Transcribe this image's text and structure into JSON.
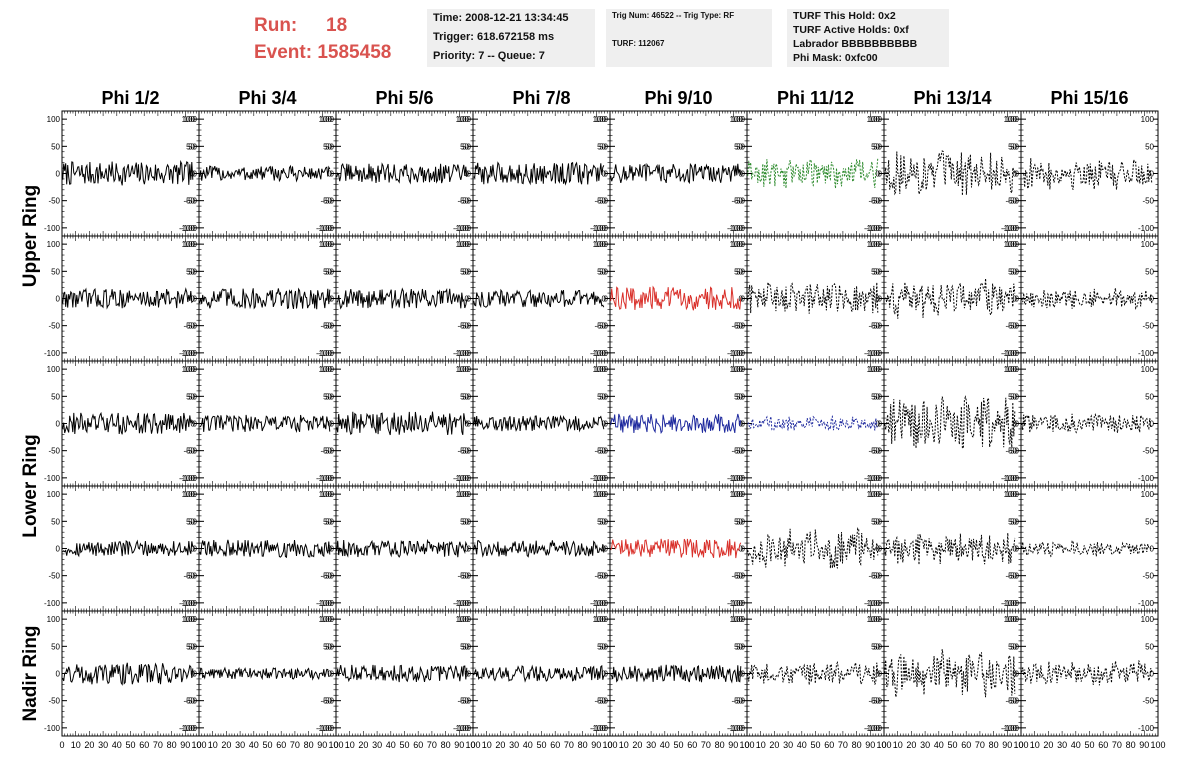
{
  "header": {
    "run_label": "Run:",
    "run_value": "18",
    "event_label": "Event:",
    "event_value": "1585458",
    "time_line": "Time: 2008-12-21 13:34:45",
    "trigger_line": "Trigger: 618.672158 ms",
    "priority_line": "Priority: 7 -- Queue: 7",
    "trig_num_line": "Trig Num: 46522 -- Trig Type: RF",
    "turf_line": "TURF: 112067",
    "turf_hold_line": "TURF This Hold: 0x2",
    "turf_active_line": "TURF Active Holds: 0xf",
    "labrador_line": "Labrador BBBBBBBBBB",
    "phi_mask_line": "Phi Mask: 0xfc00"
  },
  "chart_data": {
    "type": "line",
    "columns": [
      "Phi 1/2",
      "Phi 3/4",
      "Phi 5/6",
      "Phi 7/8",
      "Phi 9/10",
      "Phi 11/12",
      "Phi 13/14",
      "Phi 15/16"
    ],
    "rows": [
      "Upper Ring",
      "Lower Ring",
      "Nadir Ring"
    ],
    "xlim": [
      0,
      100
    ],
    "ylim": [
      -115,
      115
    ],
    "yticks": [
      -100,
      -50,
      0,
      50,
      100
    ],
    "xticks": [
      0,
      10,
      20,
      30,
      40,
      50,
      60,
      70,
      80,
      90,
      100
    ],
    "colors": {
      "black": "#000000",
      "green": "#2e8b2e",
      "red": "#d9302a",
      "blue": "#1f2a9e"
    },
    "panels": [
      {
        "col": 0,
        "row": 0,
        "color": "black",
        "style": "solid",
        "amplitude": 22
      },
      {
        "col": 1,
        "row": 0,
        "color": "black",
        "style": "solid",
        "amplitude": 14
      },
      {
        "col": 2,
        "row": 0,
        "color": "black",
        "style": "solid",
        "amplitude": 18
      },
      {
        "col": 3,
        "row": 0,
        "color": "black",
        "style": "solid",
        "amplitude": 20
      },
      {
        "col": 4,
        "row": 0,
        "color": "black",
        "style": "solid",
        "amplitude": 18
      },
      {
        "col": 5,
        "row": 0,
        "color": "green",
        "style": "dashed",
        "amplitude": 30
      },
      {
        "col": 6,
        "row": 0,
        "color": "black",
        "style": "dashed",
        "amplitude": 42
      },
      {
        "col": 7,
        "row": 0,
        "color": "black",
        "style": "dashed",
        "amplitude": 30
      },
      {
        "col": 0,
        "row": 1,
        "color": "black",
        "style": "solid",
        "amplitude": 18
      },
      {
        "col": 1,
        "row": 1,
        "color": "black",
        "style": "solid",
        "amplitude": 20
      },
      {
        "col": 2,
        "row": 1,
        "color": "black",
        "style": "solid",
        "amplitude": 18
      },
      {
        "col": 3,
        "row": 1,
        "color": "black",
        "style": "solid",
        "amplitude": 16
      },
      {
        "col": 4,
        "row": 1,
        "color": "red",
        "style": "solid",
        "amplitude": 22
      },
      {
        "col": 5,
        "row": 1,
        "color": "black",
        "style": "dashed",
        "amplitude": 32
      },
      {
        "col": 6,
        "row": 1,
        "color": "black",
        "style": "dashed",
        "amplitude": 38
      },
      {
        "col": 7,
        "row": 1,
        "color": "black",
        "style": "dashed",
        "amplitude": 20
      },
      {
        "col": 0,
        "row": 2,
        "color": "black",
        "style": "solid",
        "amplitude": 20
      },
      {
        "col": 1,
        "row": 2,
        "color": "black",
        "style": "solid",
        "amplitude": 16
      },
      {
        "col": 2,
        "row": 2,
        "color": "black",
        "style": "solid",
        "amplitude": 22
      },
      {
        "col": 3,
        "row": 2,
        "color": "black",
        "style": "solid",
        "amplitude": 14
      },
      {
        "col": 4,
        "row": 2,
        "color": "blue",
        "style": "solid",
        "amplitude": 18
      },
      {
        "col": 5,
        "row": 2,
        "color": "blue",
        "style": "dashed",
        "amplitude": 14
      },
      {
        "col": 6,
        "row": 2,
        "color": "black",
        "style": "dashed",
        "amplitude": 50
      },
      {
        "col": 7,
        "row": 2,
        "color": "black",
        "style": "dashed",
        "amplitude": 18
      },
      {
        "col": 0,
        "row": 3,
        "color": "black",
        "style": "solid",
        "amplitude": 14
      },
      {
        "col": 1,
        "row": 3,
        "color": "black",
        "style": "solid",
        "amplitude": 16
      },
      {
        "col": 2,
        "row": 3,
        "color": "black",
        "style": "solid",
        "amplitude": 16
      },
      {
        "col": 3,
        "row": 3,
        "color": "black",
        "style": "solid",
        "amplitude": 15
      },
      {
        "col": 4,
        "row": 3,
        "color": "red",
        "style": "solid",
        "amplitude": 18
      },
      {
        "col": 5,
        "row": 3,
        "color": "black",
        "style": "dashed",
        "amplitude": 40
      },
      {
        "col": 6,
        "row": 3,
        "color": "black",
        "style": "dashed",
        "amplitude": 30
      },
      {
        "col": 7,
        "row": 3,
        "color": "black",
        "style": "dashed",
        "amplitude": 15
      },
      {
        "col": 0,
        "row": 4,
        "color": "black",
        "style": "solid",
        "amplitude": 20
      },
      {
        "col": 1,
        "row": 4,
        "color": "black",
        "style": "solid",
        "amplitude": 10
      },
      {
        "col": 2,
        "row": 4,
        "color": "black",
        "style": "solid",
        "amplitude": 16
      },
      {
        "col": 3,
        "row": 4,
        "color": "black",
        "style": "solid",
        "amplitude": 14
      },
      {
        "col": 4,
        "row": 4,
        "color": "black",
        "style": "solid",
        "amplitude": 16
      },
      {
        "col": 5,
        "row": 4,
        "color": "black",
        "style": "dashed",
        "amplitude": 22
      },
      {
        "col": 6,
        "row": 4,
        "color": "black",
        "style": "dashed",
        "amplitude": 45
      },
      {
        "col": 7,
        "row": 4,
        "color": "black",
        "style": "dashed",
        "amplitude": 25
      }
    ]
  }
}
